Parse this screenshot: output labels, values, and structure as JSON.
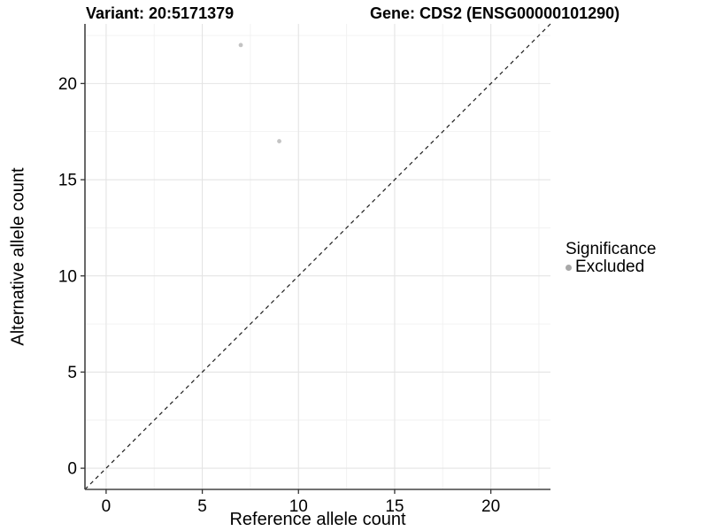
{
  "title": {
    "variant": "Variant: 20:5171379",
    "gene": "Gene: CDS2 (ENSG00000101290)"
  },
  "axes": {
    "xlabel": "Reference allele count",
    "ylabel": "Alternative allele count"
  },
  "legend": {
    "title": "Significance",
    "entries": [
      {
        "label": "Excluded",
        "color": "#a8a8a8"
      }
    ]
  },
  "chart_data": {
    "type": "scatter",
    "title": "Variant: 20:5171379    Gene: CDS2 (ENSG00000101290)",
    "xlabel": "Reference allele count",
    "ylabel": "Alternative allele count",
    "xlim": [
      -1.1,
      23.1
    ],
    "ylim": [
      -1.1,
      23.1
    ],
    "xticks": [
      0,
      5,
      10,
      15,
      20
    ],
    "yticks": [
      0,
      5,
      10,
      15,
      20
    ],
    "minor_grid_step": 2.5,
    "grid": true,
    "legend_position": "right",
    "series": [
      {
        "name": "Excluded",
        "points": [
          {
            "x": 7,
            "y": 22
          },
          {
            "x": 9,
            "y": 17
          }
        ]
      }
    ],
    "reference_line": {
      "kind": "identity",
      "slope": 1,
      "intercept": 0,
      "style": "dashed"
    },
    "colors": {
      "point": "#c3c3c3",
      "legend_point": "#a8a8a8",
      "grid_major": "#e4e4e4",
      "grid_minor": "#f1f1f1",
      "axis_line": "#444444",
      "tick_mark": "#333333",
      "tick_label": "#000000",
      "dashed_line": "#1c1c1c"
    }
  }
}
